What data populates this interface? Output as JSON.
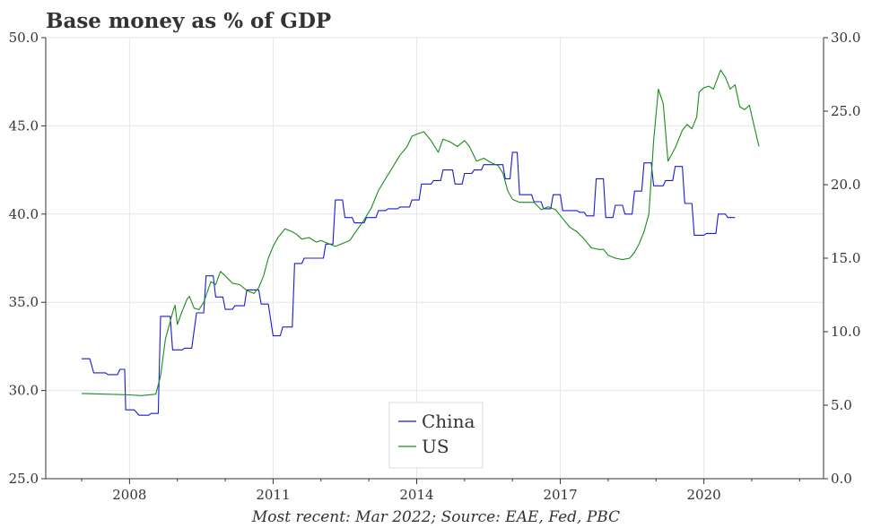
{
  "chart_data": {
    "type": "line",
    "title": "Base money as % of GDP",
    "source": "Most recent: Mar 2022; Source: EAE, Fed, PBC",
    "xlabel": "",
    "ylabel": "",
    "x_ticks": [
      "2008",
      "2011",
      "2014",
      "2017",
      "2020"
    ],
    "xlim": [
      2006.25,
      2022.5
    ],
    "y_left": {
      "lim": [
        25,
        50
      ],
      "ticks": [
        "25.0",
        "30.0",
        "35.0",
        "40.0",
        "45.0",
        "50.0"
      ]
    },
    "y_right": {
      "lim": [
        0,
        30
      ],
      "ticks": [
        "0.0",
        "5.0",
        "10.0",
        "15.0",
        "20.0",
        "25.0",
        "30.0"
      ]
    },
    "grid": true,
    "legend": {
      "position": "bottom-center"
    },
    "series": [
      {
        "name": "China",
        "axis": "left",
        "color": "#1a1ad6",
        "points": [
          [
            2007.0,
            31.8
          ],
          [
            2007.17,
            31.8
          ],
          [
            2007.25,
            31.0
          ],
          [
            2007.5,
            31.0
          ],
          [
            2007.55,
            30.9
          ],
          [
            2007.75,
            30.9
          ],
          [
            2007.8,
            31.2
          ],
          [
            2007.9,
            31.2
          ],
          [
            2007.92,
            28.9
          ],
          [
            2008.0,
            28.9
          ],
          [
            2008.1,
            28.9
          ],
          [
            2008.2,
            28.6
          ],
          [
            2008.4,
            28.6
          ],
          [
            2008.45,
            28.7
          ],
          [
            2008.6,
            28.7
          ],
          [
            2008.65,
            34.2
          ],
          [
            2008.85,
            34.2
          ],
          [
            2008.9,
            32.3
          ],
          [
            2009.1,
            32.3
          ],
          [
            2009.15,
            32.4
          ],
          [
            2009.3,
            32.4
          ],
          [
            2009.4,
            34.4
          ],
          [
            2009.55,
            34.4
          ],
          [
            2009.6,
            36.5
          ],
          [
            2009.75,
            36.5
          ],
          [
            2009.8,
            35.3
          ],
          [
            2009.95,
            35.3
          ],
          [
            2010.0,
            34.6
          ],
          [
            2010.15,
            34.6
          ],
          [
            2010.2,
            34.8
          ],
          [
            2010.4,
            34.8
          ],
          [
            2010.45,
            35.7
          ],
          [
            2010.7,
            35.7
          ],
          [
            2010.75,
            34.9
          ],
          [
            2010.9,
            34.9
          ],
          [
            2011.0,
            33.1
          ],
          [
            2011.15,
            33.1
          ],
          [
            2011.2,
            33.6
          ],
          [
            2011.4,
            33.6
          ],
          [
            2011.45,
            37.2
          ],
          [
            2011.6,
            37.2
          ],
          [
            2011.65,
            37.5
          ],
          [
            2012.05,
            37.5
          ],
          [
            2012.1,
            38.3
          ],
          [
            2012.25,
            38.3
          ],
          [
            2012.3,
            40.8
          ],
          [
            2012.45,
            40.8
          ],
          [
            2012.5,
            39.8
          ],
          [
            2012.65,
            39.8
          ],
          [
            2012.7,
            39.5
          ],
          [
            2012.9,
            39.5
          ],
          [
            2012.95,
            39.8
          ],
          [
            2013.15,
            39.8
          ],
          [
            2013.2,
            40.2
          ],
          [
            2013.35,
            40.2
          ],
          [
            2013.4,
            40.3
          ],
          [
            2013.6,
            40.3
          ],
          [
            2013.65,
            40.4
          ],
          [
            2013.85,
            40.4
          ],
          [
            2013.9,
            40.8
          ],
          [
            2014.05,
            40.8
          ],
          [
            2014.1,
            41.7
          ],
          [
            2014.3,
            41.7
          ],
          [
            2014.35,
            41.9
          ],
          [
            2014.5,
            41.9
          ],
          [
            2014.55,
            42.5
          ],
          [
            2014.75,
            42.5
          ],
          [
            2014.8,
            41.7
          ],
          [
            2014.95,
            41.7
          ],
          [
            2015.0,
            42.3
          ],
          [
            2015.15,
            42.3
          ],
          [
            2015.2,
            42.5
          ],
          [
            2015.35,
            42.5
          ],
          [
            2015.4,
            42.8
          ],
          [
            2015.8,
            42.8
          ],
          [
            2015.85,
            42.0
          ],
          [
            2015.95,
            42.0
          ],
          [
            2016.0,
            43.5
          ],
          [
            2016.1,
            43.5
          ],
          [
            2016.15,
            41.1
          ],
          [
            2016.4,
            41.1
          ],
          [
            2016.45,
            40.7
          ],
          [
            2016.6,
            40.7
          ],
          [
            2016.65,
            40.3
          ],
          [
            2016.8,
            40.3
          ],
          [
            2016.85,
            41.1
          ],
          [
            2017.0,
            41.1
          ],
          [
            2017.05,
            40.2
          ],
          [
            2017.35,
            40.2
          ],
          [
            2017.4,
            40.1
          ],
          [
            2017.5,
            40.1
          ],
          [
            2017.55,
            39.9
          ],
          [
            2017.7,
            39.9
          ],
          [
            2017.75,
            42.0
          ],
          [
            2017.9,
            42.0
          ],
          [
            2017.95,
            39.8
          ],
          [
            2018.1,
            39.8
          ],
          [
            2018.15,
            40.5
          ],
          [
            2018.3,
            40.5
          ],
          [
            2018.35,
            40.0
          ],
          [
            2018.5,
            40.0
          ],
          [
            2018.55,
            41.3
          ],
          [
            2018.7,
            41.3
          ],
          [
            2018.75,
            42.9
          ],
          [
            2018.9,
            42.9
          ],
          [
            2018.95,
            41.6
          ],
          [
            2019.15,
            41.6
          ],
          [
            2019.2,
            41.9
          ],
          [
            2019.35,
            41.9
          ],
          [
            2019.4,
            42.7
          ],
          [
            2019.55,
            42.7
          ],
          [
            2019.6,
            40.6
          ],
          [
            2019.75,
            40.6
          ],
          [
            2019.8,
            38.8
          ],
          [
            2020.0,
            38.8
          ],
          [
            2020.05,
            38.9
          ],
          [
            2020.25,
            38.9
          ],
          [
            2020.3,
            40.0
          ],
          [
            2020.45,
            40.0
          ],
          [
            2020.5,
            39.8
          ],
          [
            2020.65,
            39.8
          ]
        ]
      },
      {
        "name": "US",
        "axis": "right",
        "color": "#1a8c1a",
        "points": [
          [
            2007.0,
            5.8
          ],
          [
            2007.5,
            5.75
          ],
          [
            2008.0,
            5.7
          ],
          [
            2008.25,
            5.65
          ],
          [
            2008.55,
            5.75
          ],
          [
            2008.65,
            7.0
          ],
          [
            2008.75,
            9.5
          ],
          [
            2008.9,
            11.3
          ],
          [
            2008.95,
            11.8
          ],
          [
            2009.0,
            10.5
          ],
          [
            2009.1,
            11.4
          ],
          [
            2009.2,
            12.2
          ],
          [
            2009.25,
            12.4
          ],
          [
            2009.35,
            11.6
          ],
          [
            2009.45,
            11.5
          ],
          [
            2009.55,
            12.0
          ],
          [
            2009.7,
            13.4
          ],
          [
            2009.8,
            13.2
          ],
          [
            2009.9,
            14.1
          ],
          [
            2010.0,
            13.8
          ],
          [
            2010.15,
            13.3
          ],
          [
            2010.3,
            13.2
          ],
          [
            2010.45,
            12.8
          ],
          [
            2010.6,
            12.6
          ],
          [
            2010.7,
            13.0
          ],
          [
            2010.8,
            13.8
          ],
          [
            2010.9,
            15.0
          ],
          [
            2011.0,
            15.8
          ],
          [
            2011.1,
            16.4
          ],
          [
            2011.25,
            17.0
          ],
          [
            2011.4,
            16.8
          ],
          [
            2011.5,
            16.6
          ],
          [
            2011.6,
            16.3
          ],
          [
            2011.75,
            16.4
          ],
          [
            2011.9,
            16.1
          ],
          [
            2012.0,
            16.2
          ],
          [
            2012.15,
            16.0
          ],
          [
            2012.3,
            15.8
          ],
          [
            2012.45,
            16.0
          ],
          [
            2012.6,
            16.2
          ],
          [
            2012.75,
            16.9
          ],
          [
            2012.9,
            17.6
          ],
          [
            2013.05,
            18.4
          ],
          [
            2013.2,
            19.6
          ],
          [
            2013.35,
            20.4
          ],
          [
            2013.5,
            21.2
          ],
          [
            2013.65,
            22.0
          ],
          [
            2013.8,
            22.6
          ],
          [
            2013.9,
            23.3
          ],
          [
            2014.05,
            23.5
          ],
          [
            2014.15,
            23.6
          ],
          [
            2014.3,
            23.0
          ],
          [
            2014.45,
            22.2
          ],
          [
            2014.55,
            23.1
          ],
          [
            2014.7,
            22.9
          ],
          [
            2014.85,
            22.6
          ],
          [
            2015.0,
            23.0
          ],
          [
            2015.1,
            22.6
          ],
          [
            2015.25,
            21.6
          ],
          [
            2015.4,
            21.8
          ],
          [
            2015.55,
            21.5
          ],
          [
            2015.7,
            21.3
          ],
          [
            2015.8,
            20.8
          ],
          [
            2015.9,
            19.6
          ],
          [
            2016.0,
            19.0
          ],
          [
            2016.15,
            18.8
          ],
          [
            2016.3,
            18.8
          ],
          [
            2016.45,
            18.8
          ],
          [
            2016.6,
            18.3
          ],
          [
            2016.75,
            18.5
          ],
          [
            2016.9,
            18.3
          ],
          [
            2017.05,
            17.7
          ],
          [
            2017.2,
            17.1
          ],
          [
            2017.35,
            16.8
          ],
          [
            2017.5,
            16.3
          ],
          [
            2017.65,
            15.7
          ],
          [
            2017.8,
            15.6
          ],
          [
            2017.9,
            15.6
          ],
          [
            2018.0,
            15.2
          ],
          [
            2018.15,
            15.0
          ],
          [
            2018.3,
            14.9
          ],
          [
            2018.45,
            15.0
          ],
          [
            2018.55,
            15.4
          ],
          [
            2018.65,
            16.0
          ],
          [
            2018.75,
            16.8
          ],
          [
            2018.85,
            18.0
          ],
          [
            2018.95,
            23.0
          ],
          [
            2019.05,
            26.5
          ],
          [
            2019.15,
            25.5
          ],
          [
            2019.25,
            21.6
          ],
          [
            2019.4,
            22.5
          ],
          [
            2019.55,
            23.7
          ],
          [
            2019.65,
            24.1
          ],
          [
            2019.75,
            23.8
          ],
          [
            2019.85,
            24.6
          ],
          [
            2019.9,
            26.3
          ],
          [
            2020.0,
            26.6
          ],
          [
            2020.1,
            26.7
          ],
          [
            2020.2,
            26.5
          ],
          [
            2020.35,
            27.8
          ],
          [
            2020.45,
            27.3
          ],
          [
            2020.55,
            26.5
          ],
          [
            2020.65,
            26.8
          ],
          [
            2020.75,
            25.3
          ],
          [
            2020.85,
            25.1
          ],
          [
            2020.95,
            25.4
          ],
          [
            2021.05,
            24.0
          ],
          [
            2021.15,
            22.6
          ]
        ]
      }
    ]
  }
}
